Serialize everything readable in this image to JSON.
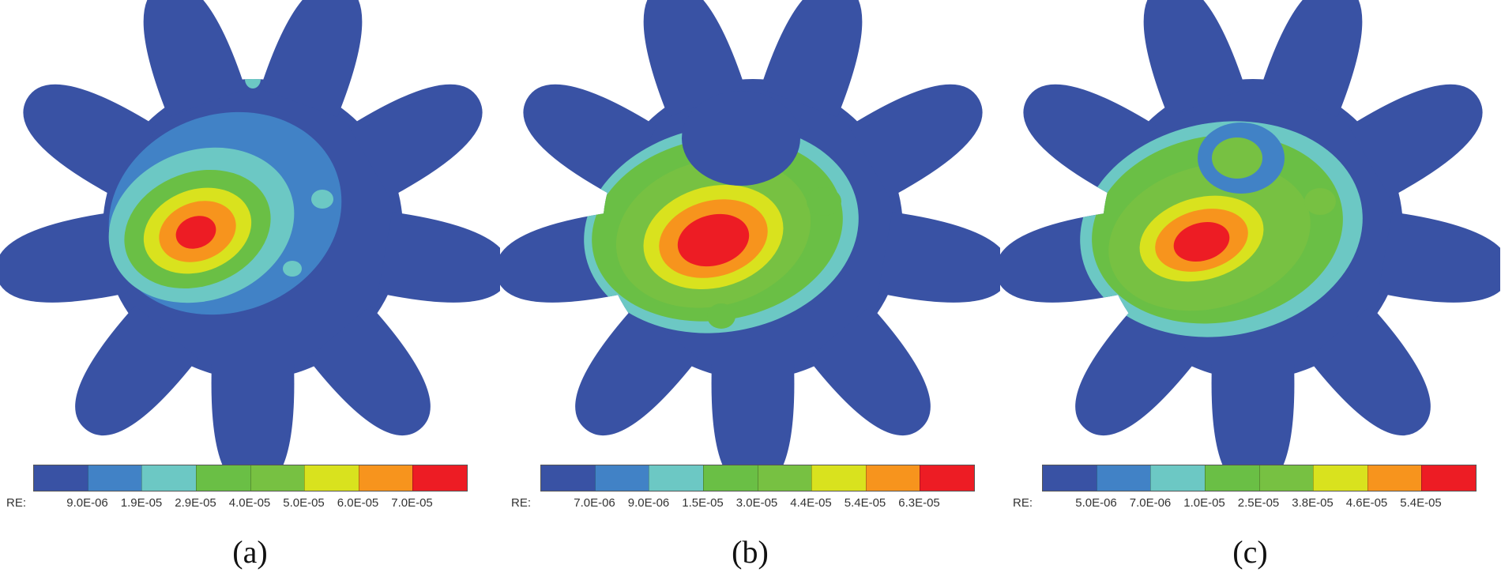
{
  "colors": {
    "level1": "#3952a4",
    "level2": "#4182c6",
    "level3": "#6cc8c4",
    "level4": "#6abf45",
    "level5": "#77c142",
    "level6": "#d9e21e",
    "level7": "#f7941d",
    "level8": "#ed1c24"
  },
  "panels": [
    {
      "caption": "(a)",
      "legend_prefix": "RE:",
      "legend_values": [
        "9.0E-06",
        "1.9E-05",
        "2.9E-05",
        "4.0E-05",
        "5.0E-05",
        "6.0E-05",
        "7.0E-05"
      ]
    },
    {
      "caption": "(b)",
      "legend_prefix": "RE:",
      "legend_values": [
        "7.0E-06",
        "9.0E-06",
        "1.5E-05",
        "3.0E-05",
        "4.4E-05",
        "5.4E-05",
        "6.3E-05"
      ]
    },
    {
      "caption": "(c)",
      "legend_prefix": "RE:",
      "legend_values": [
        "5.0E-06",
        "7.0E-06",
        "1.0E-05",
        "2.5E-05",
        "3.8E-05",
        "4.6E-05",
        "5.4E-05"
      ]
    }
  ]
}
